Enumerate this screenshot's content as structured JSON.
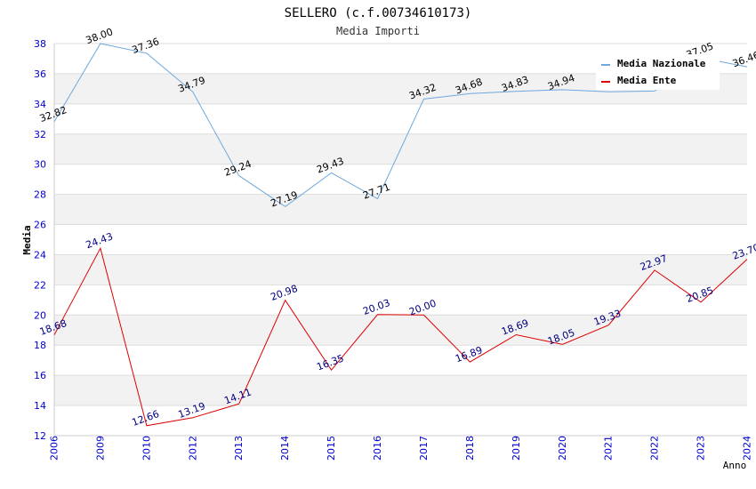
{
  "chart_data": {
    "type": "line",
    "title": "SELLERO (c.f.00734610173)",
    "subtitle": "Media Importi",
    "xlabel": "Anno",
    "ylabel": "Media",
    "categories": [
      "2006",
      "2009",
      "2010",
      "2012",
      "2013",
      "2014",
      "2015",
      "2016",
      "2017",
      "2018",
      "2019",
      "2020",
      "2021",
      "2022",
      "2023",
      "2024"
    ],
    "ylim": [
      12,
      38
    ],
    "yticks": [
      12,
      14,
      16,
      18,
      20,
      22,
      24,
      26,
      28,
      30,
      32,
      34,
      36,
      38
    ],
    "grid": true,
    "legend_position": "top-right",
    "series": [
      {
        "name": "Media Nazionale",
        "color": "#6fa8dc",
        "label_color": "#000000",
        "values": [
          32.82,
          38.0,
          37.36,
          34.79,
          29.24,
          27.19,
          29.43,
          27.71,
          34.32,
          34.68,
          34.83,
          34.94,
          34.8,
          34.85,
          37.05,
          36.46
        ],
        "labels": [
          "32.82",
          "38.00",
          "37.36",
          "34.79",
          "29.24",
          "27.19",
          "29.43",
          "27.71",
          "34.32",
          "34.68",
          "34.83",
          "34.94",
          "",
          "",
          "37.05",
          "36.46"
        ]
      },
      {
        "name": "Media Ente",
        "color": "#dd0000",
        "label_color": "#000080",
        "values": [
          18.68,
          24.43,
          12.66,
          13.19,
          14.11,
          20.98,
          16.35,
          20.03,
          20.0,
          16.89,
          18.69,
          18.05,
          19.33,
          22.97,
          20.85,
          23.7
        ],
        "labels": [
          "18.68",
          "24.43",
          "12.66",
          "13.19",
          "14.11",
          "20.98",
          "16.35",
          "20.03",
          "20.00",
          "16.89",
          "18.69",
          "18.05",
          "19.33",
          "22.97",
          "20.85",
          "23.70"
        ]
      }
    ],
    "colors": {
      "tick_label": "#0000cc",
      "band": "#f2f2f2",
      "grid": "#dddddd",
      "axis": "#cccccc"
    }
  }
}
